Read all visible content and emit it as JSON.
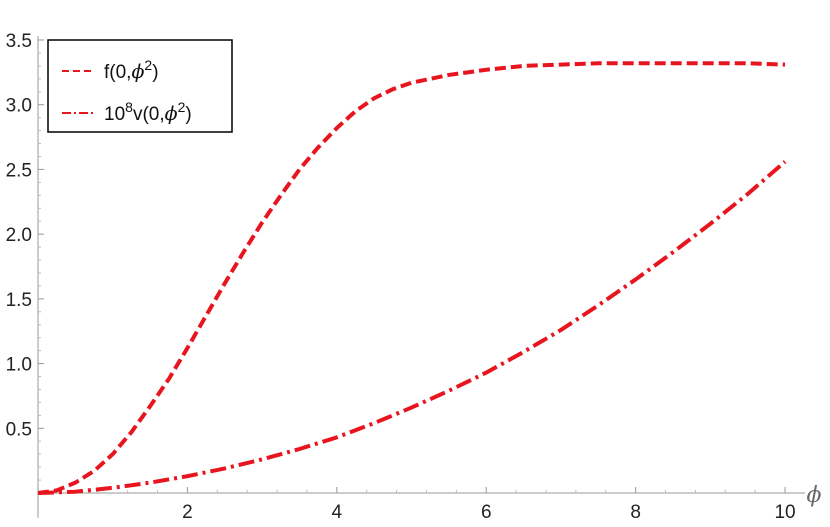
{
  "chart_data": {
    "type": "line",
    "xlabel": "ϕ",
    "ylabel": "",
    "xlim": [
      0,
      10.2
    ],
    "ylim": [
      0,
      3.5
    ],
    "x_ticks": [
      2,
      4,
      6,
      8,
      10
    ],
    "x_tick_labels": [
      "2",
      "4",
      "6",
      "8",
      "10"
    ],
    "y_ticks": [
      0.5,
      1.0,
      1.5,
      2.0,
      2.5,
      3.0,
      3.5
    ],
    "y_tick_labels": [
      "0.5",
      "1.0",
      "1.5",
      "2.0",
      "2.5",
      "3.0",
      "3.5"
    ],
    "grid": false,
    "legend": {
      "placement": "top-left",
      "entries": [
        {
          "base": "f(0,",
          "symbol": "ϕ",
          "sup": "2",
          "close": ")"
        },
        {
          "prefix": "10",
          "prefix_sup": "8",
          "base": "v(0,",
          "symbol": "ϕ",
          "sup": "2",
          "close": ")"
        }
      ]
    },
    "series": [
      {
        "style": "dashed",
        "color": "#e8141e",
        "x": [
          0,
          0.25,
          0.5,
          0.75,
          1.0,
          1.25,
          1.5,
          1.75,
          2.0,
          2.25,
          2.5,
          2.75,
          3.0,
          3.25,
          3.5,
          3.75,
          4.0,
          4.25,
          4.5,
          4.75,
          5.0,
          5.5,
          6.0,
          6.5,
          7.0,
          7.5,
          8.0,
          8.5,
          9.0,
          9.5,
          10.0
        ],
        "y": [
          0,
          0.02,
          0.08,
          0.17,
          0.3,
          0.47,
          0.67,
          0.88,
          1.12,
          1.37,
          1.62,
          1.86,
          2.09,
          2.3,
          2.5,
          2.67,
          2.82,
          2.95,
          3.05,
          3.12,
          3.17,
          3.23,
          3.27,
          3.3,
          3.31,
          3.32,
          3.32,
          3.32,
          3.32,
          3.32,
          3.31
        ]
      },
      {
        "style": "dash-dot",
        "color": "#e8141e",
        "x": [
          0,
          0.5,
          1.0,
          1.5,
          2.0,
          2.5,
          3.0,
          3.5,
          4.0,
          4.5,
          5.0,
          5.5,
          6.0,
          6.5,
          7.0,
          7.5,
          8.0,
          8.5,
          9.0,
          9.5,
          10.0
        ],
        "y": [
          0,
          0.01,
          0.04,
          0.08,
          0.13,
          0.19,
          0.26,
          0.34,
          0.43,
          0.54,
          0.66,
          0.79,
          0.93,
          1.09,
          1.26,
          1.45,
          1.65,
          1.86,
          2.08,
          2.31,
          2.56
        ]
      }
    ]
  }
}
